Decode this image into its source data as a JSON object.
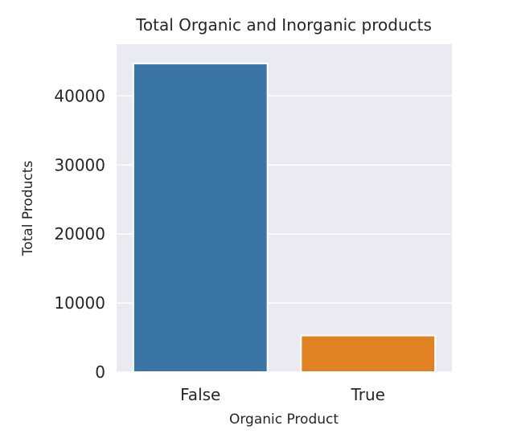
{
  "chart_data": {
    "type": "bar",
    "title": "Total Organic and Inorganic products",
    "xlabel": "Organic Product",
    "ylabel": "Total Products",
    "categories": [
      "False",
      "True"
    ],
    "values": [
      44700,
      5300
    ],
    "colors": [
      "#3a75a5",
      "#e08122"
    ],
    "ylim": [
      0,
      47500
    ],
    "yticks": [
      0,
      10000,
      20000,
      30000,
      40000
    ],
    "ytick_labels": [
      "0",
      "10000",
      "20000",
      "30000",
      "40000"
    ],
    "grid": true,
    "background": "#eaeaf2"
  }
}
